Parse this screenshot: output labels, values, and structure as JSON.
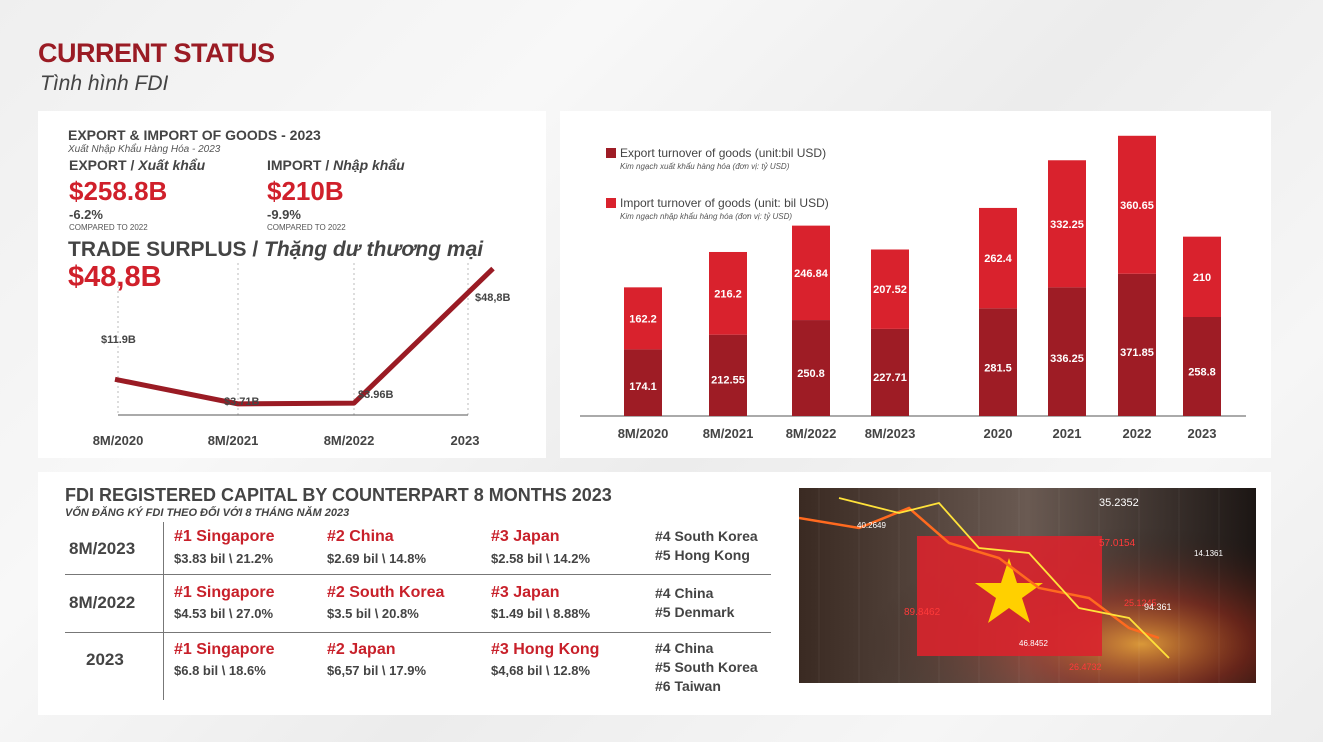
{
  "header": {
    "title": "CURRENT STATUS",
    "subtitle": "Tình hình FDI"
  },
  "trade": {
    "title": "EXPORT & IMPORT OF GOODS - 2023",
    "title_vi": "Xuất Nhập Khẩu Hàng Hóa - 2023",
    "export": {
      "label": "EXPORT",
      "label_vi": "Xuất khẩu",
      "value": "$258.8B",
      "change": "-6.2%",
      "compare": "COMPARED TO 2022"
    },
    "import": {
      "label": "IMPORT",
      "label_vi": "Nhập khẩu",
      "value": "$210B",
      "change": "-9.9%",
      "compare": "COMPARED TO 2022"
    },
    "surplus": {
      "label": "TRADE SURPLUS",
      "label_vi": "Thặng dư thương mại",
      "value": "$48,8B"
    }
  },
  "chart_data": [
    {
      "type": "line",
      "title": "",
      "categories": [
        "8M/2020",
        "8M/2021",
        "8M/2022",
        "2023"
      ],
      "series": [
        {
          "values": [
            11.9,
            3.71,
            3.96,
            48.8
          ]
        }
      ],
      "data_labels": [
        "$11.9B",
        "$3.71B",
        "$3.96B",
        "$48,8B"
      ],
      "ylim": [
        0,
        56
      ],
      "grid": "vertical dashed",
      "color": "#9a1b24"
    },
    {
      "type": "bar",
      "stacked": true,
      "title": "",
      "categories": [
        "8M/2020",
        "8M/2021",
        "8M/2022",
        "8M/2023",
        "2020",
        "2021",
        "2022",
        "2023"
      ],
      "series": [
        {
          "name": "Export turnover of goods (unit:bil USD)",
          "name_vi": "Kim ngạch xuất khẩu hàng hóa (đơn vị: tỷ USD)",
          "values": [
            174.1,
            212.55,
            250.8,
            227.71,
            281.5,
            336.25,
            371.85,
            258.8
          ],
          "color": "#9e1c25"
        },
        {
          "name": "Import turnover of goods (unit: bil USD)",
          "name_vi": "Kim ngạch nhập khẩu hàng hóa (đơn vị: tỷ USD)",
          "values": [
            162.2,
            216.2,
            246.84,
            207.52,
            262.4,
            332.25,
            360.65,
            210
          ],
          "color": "#d9222d"
        }
      ],
      "ylim": [
        0,
        745
      ],
      "legend": "top-left"
    }
  ],
  "fdi": {
    "title": "FDI REGISTERED CAPITAL BY COUNTERPART 8 MONTHS 2023",
    "title_vi": "VỐN ĐĂNG KÝ FDI THEO ĐỐI VỚI 8 THÁNG NĂM 2023",
    "rows": [
      {
        "period": "8M/2023",
        "top": [
          {
            "name": "#1 Singapore",
            "value": "$3.83 bil \\ 21.2%"
          },
          {
            "name": "#2 China",
            "value": "$2.69 bil \\ 14.8%"
          },
          {
            "name": "#3 Japan",
            "value": "$2.58 bil \\ 14.2%"
          }
        ],
        "others": [
          "#4 South Korea",
          "#5 Hong Kong"
        ]
      },
      {
        "period": "8M/2022",
        "top": [
          {
            "name": "#1 Singapore",
            "value": "$4.53 bil \\ 27.0%"
          },
          {
            "name": "#2 South Korea",
            "value": "$3.5 bil \\ 20.8%"
          },
          {
            "name": "#3 Japan",
            "value": "$1.49 bil \\ 8.88%"
          }
        ],
        "others": [
          "#4 China",
          "#5 Denmark"
        ]
      },
      {
        "period": "2023",
        "top": [
          {
            "name": "#1 Singapore",
            "value": "$6.8 bil \\ 18.6%"
          },
          {
            "name": "#2 Japan",
            "value": "$6,57 bil \\ 17.9%"
          },
          {
            "name": "#3 Hong Kong",
            "value": "$4,68 bil \\ 12.8%"
          }
        ],
        "others": [
          "#4 China",
          "#5 South Korea",
          "#6 Taiwan"
        ]
      }
    ]
  },
  "photo": {
    "icon": "vietnam-flag-stock-chart-photo",
    "numbers": [
      "35.2352",
      "57.0154",
      "25.1245",
      "89.8462",
      "40.2649",
      "14.1361",
      "94.361",
      "46.8452",
      "26.4732"
    ]
  }
}
